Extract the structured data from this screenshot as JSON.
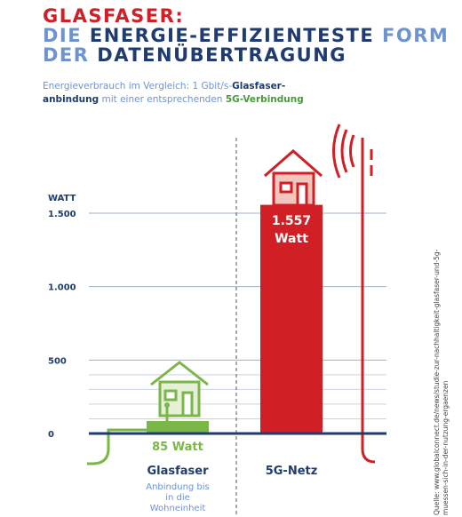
{
  "chart_data": {
    "type": "bar",
    "title": [
      "GLASFASER:",
      "DIE",
      "ENERGIE-EFFIZIENTESTE",
      "FORM",
      "DER",
      "DATENÜBERTRAGUNG"
    ],
    "subtitle": [
      "Energieverbrauch im Vergleich: 1 Gbit/s-",
      "Glasfaser-anbindung",
      "mit einer entsprechenden",
      "5G-Verbindung"
    ],
    "y_label": "WATT",
    "categories": [
      "Glasfaser",
      "5G-Netz"
    ],
    "category_notes": [
      "Anbindung bis in die Wohneinheit",
      null
    ],
    "values": [
      85,
      1557
    ],
    "value_labels": [
      "85 Watt",
      "1.557 Watt"
    ],
    "colors": [
      "#7ab648",
      "#d11f26"
    ],
    "ylim": [
      0,
      1500
    ],
    "yticks": [
      0,
      500,
      {
        "value": 1000,
        "label": "1.000"
      },
      {
        "value": 1500,
        "label": "1.500"
      }
    ],
    "minor_yticks": [
      100,
      200,
      300,
      400
    ],
    "grid": true,
    "source": "Quelle: www.globalconnect.de/news/studie-zur-nachhaltigkeit-glasfaser-und-5g-muessen-sich-in-der-nutzung-ergaenzen"
  }
}
